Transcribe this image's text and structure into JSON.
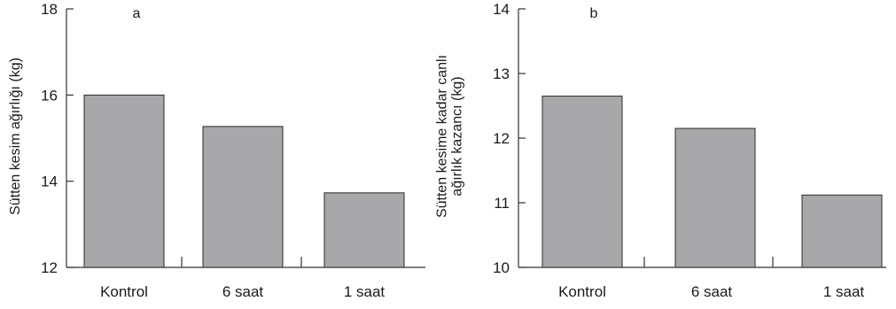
{
  "colors": {
    "bar_fill": "#a8a8aa",
    "bar_stroke": "#2a2a2a",
    "axis": "#333333"
  },
  "chart_data": [
    {
      "type": "bar",
      "panel": "a",
      "categories": [
        "Kontrol",
        "6 saat",
        "1 saat"
      ],
      "values": [
        16.0,
        15.27,
        13.73
      ],
      "ylabel_lines": [
        "Sütten kesim ağırlığı (kg)"
      ],
      "ylim": [
        12,
        18
      ],
      "yticks": [
        12,
        14,
        16,
        18
      ],
      "grid": false
    },
    {
      "type": "bar",
      "panel": "b",
      "categories": [
        "Kontrol",
        "6 saat",
        "1 saat"
      ],
      "values": [
        12.65,
        12.15,
        11.12
      ],
      "ylabel_lines": [
        "Sütten kesime kadar canlı",
        "ağırlık kazancı (kg)"
      ],
      "ylim": [
        10,
        14
      ],
      "yticks": [
        10,
        11,
        12,
        13,
        14
      ],
      "grid": false
    }
  ]
}
